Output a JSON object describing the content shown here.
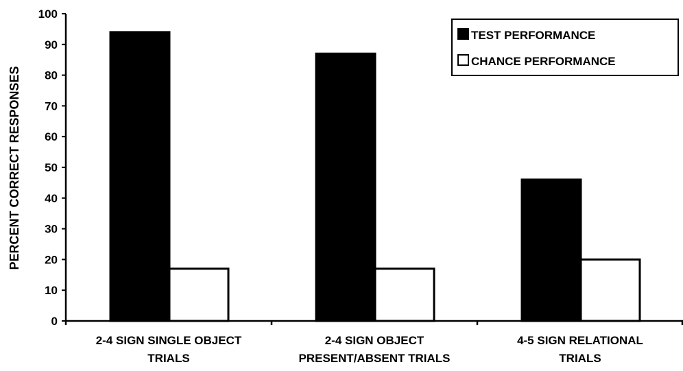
{
  "chart_data": {
    "type": "bar",
    "title": "",
    "xlabel": "",
    "ylabel": "PERCENT CORRECT RESPONSES",
    "ylim": [
      0,
      100
    ],
    "yticks": [
      0,
      10,
      20,
      30,
      40,
      50,
      60,
      70,
      80,
      90,
      100
    ],
    "categories": [
      [
        "2-4 SIGN SINGLE OBJECT",
        "TRIALS"
      ],
      [
        "2-4 SIGN OBJECT",
        "PRESENT/ABSENT TRIALS"
      ],
      [
        "4-5 SIGN RELATIONAL",
        "TRIALS"
      ]
    ],
    "series": [
      {
        "name": "TEST PERFORMANCE",
        "values": [
          94,
          87,
          46
        ],
        "fill": "#000000"
      },
      {
        "name": "CHANCE PERFORMANCE",
        "values": [
          17,
          17,
          20
        ],
        "fill": "#ffffff"
      }
    ],
    "grid": false,
    "legend_position": "top-right"
  }
}
